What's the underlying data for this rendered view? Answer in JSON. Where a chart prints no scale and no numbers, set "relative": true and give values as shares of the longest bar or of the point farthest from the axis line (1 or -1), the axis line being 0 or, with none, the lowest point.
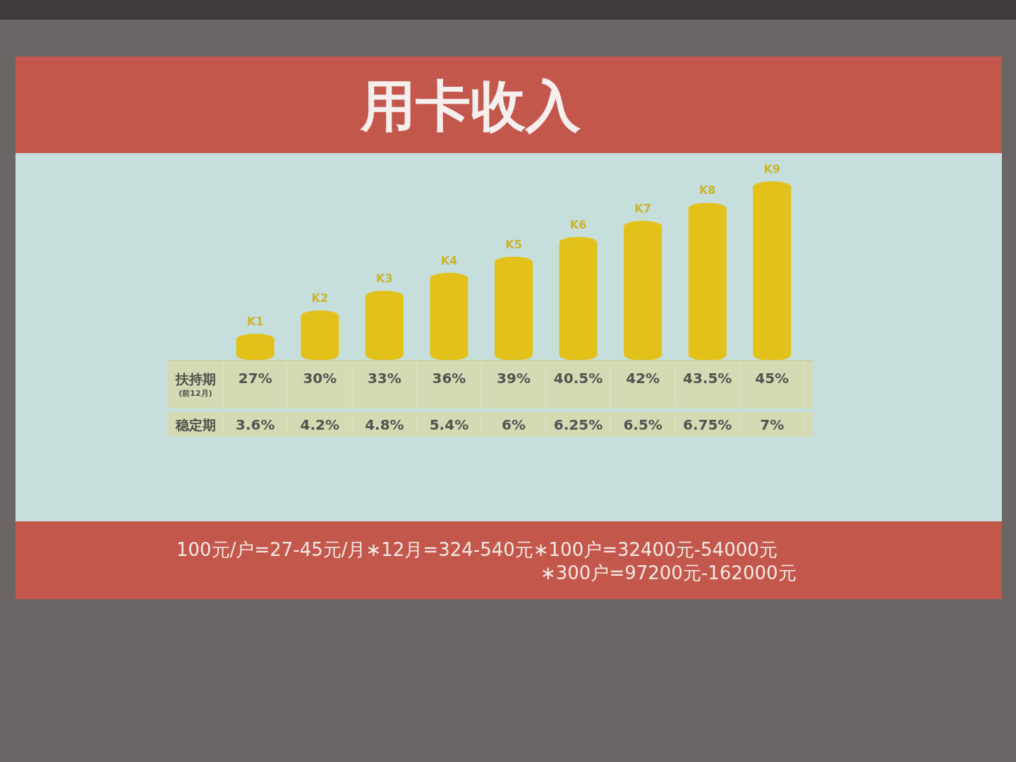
{
  "chart_data": {
    "type": "bar",
    "title": "用卡收入",
    "categories": [
      "K1",
      "K2",
      "K3",
      "K4",
      "K5",
      "K6",
      "K7",
      "K8",
      "K9"
    ],
    "values": [
      0.15,
      0.28,
      0.39,
      0.49,
      0.58,
      0.69,
      0.78,
      0.88,
      1
    ],
    "relative": true,
    "color": "#e2c21a",
    "annotations": [
      "扶持期",
      "(前12月)",
      "27%",
      "30%",
      "33%",
      "36%",
      "39%",
      "40.5%",
      "42%",
      "43.5%",
      "45%",
      "稳定期",
      "3.6%",
      "4.2%",
      "4.8%",
      "5.4%",
      "6%",
      "6.25%",
      "6.5%",
      "6.75%",
      "7%",
      "100元/户=27-45元/月∗12月=324-540元∗100户=32400元-54000元",
      "∗300户=97200元-162000元"
    ]
  }
}
